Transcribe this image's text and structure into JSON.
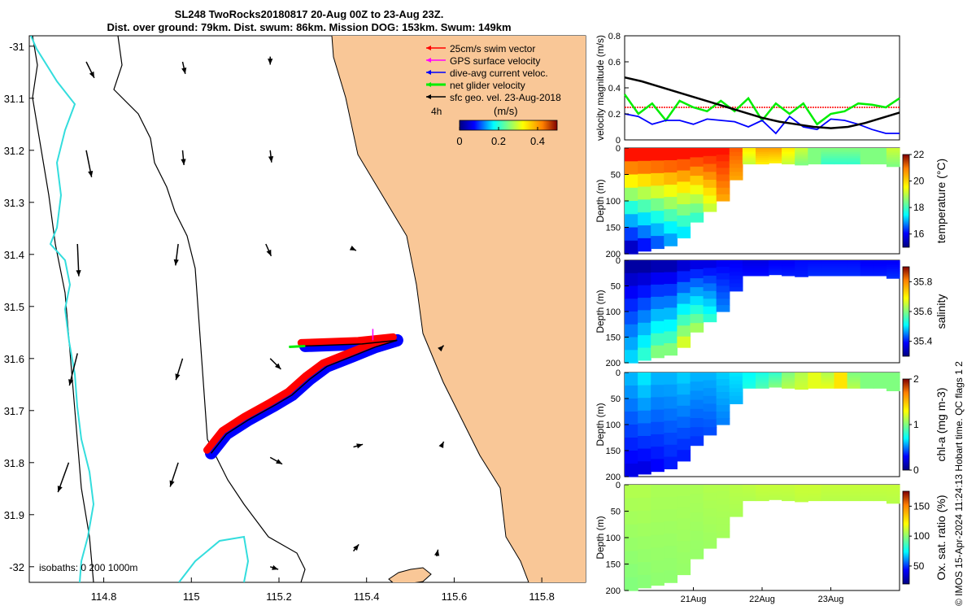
{
  "title": {
    "line1": "SL248 TwoRocks20180817 20-Aug 00Z to 23-Aug 23Z.",
    "line2": "Dist. over ground: 79km. Dist. swum: 86km. Mission DOG: 153km. Swum: 149km"
  },
  "credit": "© IMOS 15-Apr-2024 11:24:13 Hobart time. QC flags 1  2",
  "colors": {
    "land": "#f9c797",
    "coast": "#000000",
    "isobath_0": "#000000",
    "isobath_200": "#000000",
    "isobath_1000": "#33dddd",
    "swim": "#ff0000",
    "gps": "#ff00ff",
    "dive": "#0000ff",
    "net": "#00ee00",
    "geo": "#000000"
  },
  "chart_data": [
    {
      "id": "map",
      "type": "scatter",
      "x_ticks": [
        "114.8",
        "115",
        "115.2",
        "115.4",
        "115.6",
        "115.8"
      ],
      "y_ticks": [
        "-31",
        "31.1",
        "31.2",
        "31.3",
        "31.4",
        "31.5",
        "31.6",
        "31.7",
        "31.8",
        "31.9",
        "-32"
      ],
      "xlim": [
        114.63,
        115.9
      ],
      "ylim": [
        -32.03,
        -30.98
      ],
      "legend_location": "top-right",
      "legend": [
        {
          "label": "25cm/s swim vector",
          "color": "#ff0000"
        },
        {
          "label": "GPS surface velocity",
          "color": "#ff00ff"
        },
        {
          "label": "dive-avg current veloc.",
          "color": "#0000ff"
        },
        {
          "label": "net glider velocity",
          "color": "#00ee00"
        },
        {
          "label": "sfc geo. vel. 23-Aug-2018",
          "color": "#000000"
        }
      ],
      "time_step_label": "4h",
      "colorbar": {
        "label": "(m/s)",
        "ticks": [
          "0",
          "0.2",
          "0.4"
        ],
        "range": [
          0,
          0.5
        ]
      },
      "isobaths_label": "isobaths: 0   200  1000m",
      "track": [
        {
          "lon": 115.045,
          "lat": -31.782
        },
        {
          "lon": 115.08,
          "lat": -31.745
        },
        {
          "lon": 115.13,
          "lat": -31.718
        },
        {
          "lon": 115.19,
          "lat": -31.69
        },
        {
          "lon": 115.23,
          "lat": -31.67
        },
        {
          "lon": 115.27,
          "lat": -31.64
        },
        {
          "lon": 115.31,
          "lat": -31.615
        },
        {
          "lon": 115.37,
          "lat": -31.595
        },
        {
          "lon": 115.42,
          "lat": -31.578
        },
        {
          "lon": 115.47,
          "lat": -31.565
        },
        {
          "lon": 115.39,
          "lat": -31.572
        },
        {
          "lon": 115.32,
          "lat": -31.574
        },
        {
          "lon": 115.26,
          "lat": -31.576
        }
      ],
      "geo_vectors": [
        {
          "lon": 114.76,
          "lat": -31.03,
          "u": 0.03,
          "v": -0.06
        },
        {
          "lon": 114.98,
          "lat": -31.03,
          "u": 0.01,
          "v": -0.045
        },
        {
          "lon": 115.18,
          "lat": -31.02,
          "u": 0.0,
          "v": -0.03
        },
        {
          "lon": 114.76,
          "lat": -31.2,
          "u": 0.02,
          "v": -0.1
        },
        {
          "lon": 114.98,
          "lat": -31.2,
          "u": 0.005,
          "v": -0.055
        },
        {
          "lon": 115.18,
          "lat": -31.2,
          "u": 0.005,
          "v": -0.045
        },
        {
          "lon": 114.74,
          "lat": -31.38,
          "u": 0.005,
          "v": -0.12
        },
        {
          "lon": 114.97,
          "lat": -31.38,
          "u": -0.01,
          "v": -0.08
        },
        {
          "lon": 115.17,
          "lat": -31.38,
          "u": 0.02,
          "v": -0.045
        },
        {
          "lon": 115.37,
          "lat": -31.39,
          "u": 0.01,
          "v": -0.005
        },
        {
          "lon": 114.74,
          "lat": -31.59,
          "u": -0.03,
          "v": -0.12
        },
        {
          "lon": 114.98,
          "lat": -31.6,
          "u": -0.025,
          "v": -0.08
        },
        {
          "lon": 115.18,
          "lat": -31.6,
          "u": 0.04,
          "v": -0.04
        },
        {
          "lon": 115.57,
          "lat": -31.58,
          "u": 0.01,
          "v": 0.01
        },
        {
          "lon": 114.72,
          "lat": -31.8,
          "u": -0.04,
          "v": -0.11
        },
        {
          "lon": 114.97,
          "lat": -31.8,
          "u": -0.03,
          "v": -0.09
        },
        {
          "lon": 115.18,
          "lat": -31.79,
          "u": 0.045,
          "v": -0.025
        },
        {
          "lon": 115.37,
          "lat": -31.77,
          "u": 0.035,
          "v": 0.01
        },
        {
          "lon": 115.57,
          "lat": -31.77,
          "u": 0.01,
          "v": 0.02
        },
        {
          "lon": 115.18,
          "lat": -32.0,
          "u": 0.03,
          "v": -0.01
        },
        {
          "lon": 115.37,
          "lat": -31.97,
          "u": 0.02,
          "v": 0.025
        },
        {
          "lon": 115.56,
          "lat": -31.98,
          "u": 0.005,
          "v": 0.025
        }
      ]
    },
    {
      "id": "velocity",
      "type": "line",
      "ylabel": "velocity magnitude (m/s)",
      "y_ticks": [
        "0",
        "0.2",
        "0.4",
        "0.6",
        "0.8"
      ],
      "ylim": [
        0,
        0.8
      ],
      "xlim": [
        0,
        4
      ],
      "series": [
        {
          "color": "#ff0000",
          "x": [
            0,
            0.5,
            1,
            1.5,
            2,
            2.5,
            3,
            3.5,
            4
          ],
          "values": [
            0.25,
            0.25,
            0.25,
            0.25,
            0.25,
            0.25,
            0.25,
            0.25,
            0.25
          ]
        },
        {
          "color": "#00ee00",
          "x": [
            0,
            0.2,
            0.4,
            0.6,
            0.8,
            1,
            1.2,
            1.4,
            1.6,
            1.8,
            2,
            2.2,
            2.4,
            2.6,
            2.8,
            3,
            3.2,
            3.4,
            3.6,
            3.8,
            4
          ],
          "values": [
            0.35,
            0.2,
            0.28,
            0.15,
            0.3,
            0.25,
            0.22,
            0.3,
            0.22,
            0.32,
            0.15,
            0.28,
            0.2,
            0.28,
            0.12,
            0.2,
            0.22,
            0.28,
            0.27,
            0.25,
            0.32
          ]
        },
        {
          "color": "#0000ff",
          "x": [
            0,
            0.2,
            0.4,
            0.6,
            0.8,
            1,
            1.2,
            1.4,
            1.6,
            1.8,
            2,
            2.2,
            2.4,
            2.6,
            2.8,
            3,
            3.2,
            3.4,
            3.6,
            3.8,
            4
          ],
          "values": [
            0.2,
            0.18,
            0.12,
            0.15,
            0.15,
            0.12,
            0.16,
            0.15,
            0.14,
            0.1,
            0.15,
            0.05,
            0.18,
            0.1,
            0.08,
            0.16,
            0.15,
            0.12,
            0.08,
            0.05,
            0.05
          ]
        },
        {
          "color": "#000000",
          "x": [
            0,
            0.25,
            0.5,
            0.75,
            1,
            1.25,
            1.5,
            1.75,
            2,
            2.25,
            2.5,
            2.75,
            3,
            3.25,
            3.5,
            3.75,
            4
          ],
          "values": [
            0.48,
            0.45,
            0.41,
            0.37,
            0.33,
            0.29,
            0.25,
            0.21,
            0.17,
            0.14,
            0.12,
            0.1,
            0.09,
            0.1,
            0.13,
            0.17,
            0.21
          ]
        }
      ]
    },
    {
      "id": "temperature",
      "type": "heatmap",
      "ylabel": "Depth (m)",
      "y_ticks": [
        "0",
        "50",
        "100",
        "150",
        "200"
      ],
      "ylim": [
        200,
        0
      ],
      "colorbar": {
        "label": "temperature (°C)",
        "ticks": [
          "16",
          "18",
          "20",
          "22"
        ],
        "range": [
          15,
          22
        ]
      },
      "max_depth": [
        200,
        195,
        190,
        185,
        170,
        140,
        120,
        100,
        60,
        30,
        30,
        28,
        30,
        32,
        30,
        30,
        30,
        30,
        30,
        30,
        35
      ],
      "surface_value": [
        21,
        21,
        21,
        21,
        21,
        21,
        21,
        21,
        20.5,
        19.5,
        20,
        20,
        19.5,
        19,
        18.5,
        18.5,
        18.5,
        18.5,
        18.5,
        18.5,
        19
      ],
      "deep_value": [
        15.5,
        16,
        16.5,
        17,
        17.5,
        18,
        19,
        20,
        20,
        19,
        19.5,
        19.5,
        19,
        18.5,
        18.5,
        18,
        18,
        18,
        18.5,
        18.5,
        18.5
      ]
    },
    {
      "id": "salinity",
      "type": "heatmap",
      "ylabel": "Depth (m)",
      "y_ticks": [
        "0",
        "50",
        "100",
        "150",
        "200"
      ],
      "ylim": [
        200,
        0
      ],
      "colorbar": {
        "label": "salinity",
        "ticks": [
          "35.4",
          "35.6",
          "35.8"
        ],
        "range": [
          35.3,
          35.9
        ]
      },
      "max_depth": [
        200,
        195,
        190,
        185,
        170,
        140,
        120,
        100,
        60,
        30,
        30,
        28,
        30,
        32,
        30,
        30,
        30,
        30,
        30,
        30,
        35
      ],
      "surface_value": [
        35.32,
        35.32,
        35.33,
        35.33,
        35.35,
        35.36,
        35.36,
        35.37,
        35.37,
        35.36,
        35.36,
        35.37,
        35.37,
        35.38,
        35.38,
        35.38,
        35.38,
        35.38,
        35.37,
        35.37,
        35.37
      ],
      "deep_value": [
        35.5,
        35.55,
        35.6,
        35.6,
        35.65,
        35.62,
        35.55,
        35.45,
        35.4,
        35.38,
        35.38,
        35.39,
        35.39,
        35.39,
        35.4,
        35.4,
        35.4,
        35.4,
        35.39,
        35.39,
        35.4
      ]
    },
    {
      "id": "chla",
      "type": "heatmap",
      "ylabel": "Depth (m)",
      "y_ticks": [
        "0",
        "50",
        "100",
        "150",
        "200"
      ],
      "ylim": [
        200,
        0
      ],
      "colorbar": {
        "label": "chl-a (mg m-3)",
        "ticks": [
          "0",
          "1",
          "2"
        ],
        "range": [
          0,
          2
        ]
      },
      "max_depth": [
        200,
        195,
        190,
        185,
        170,
        140,
        120,
        100,
        60,
        30,
        30,
        28,
        30,
        32,
        30,
        30,
        30,
        30,
        30,
        30,
        35
      ],
      "surface_value": [
        0.6,
        0.7,
        0.6,
        0.6,
        0.65,
        0.6,
        0.6,
        0.65,
        0.7,
        0.75,
        0.8,
        0.85,
        1.0,
        1.1,
        1.2,
        1.1,
        1.3,
        1.0,
        1.0,
        1.0,
        1.0
      ],
      "deep_value": [
        0.2,
        0.2,
        0.25,
        0.3,
        0.3,
        0.35,
        0.4,
        0.5,
        0.6,
        0.8,
        0.9,
        1.0,
        1.1,
        1.15,
        1.2,
        1.2,
        1.3,
        1.1,
        1.0,
        1.0,
        1.0
      ]
    },
    {
      "id": "oxygen",
      "type": "heatmap",
      "ylabel": "Depth (m)",
      "y_ticks": [
        "0",
        "50",
        "100",
        "150",
        "200"
      ],
      "ylim": [
        200,
        0
      ],
      "x_ticks": [
        "21Aug",
        "22Aug",
        "23Aug"
      ],
      "x_tick_positions": [
        1,
        2,
        3
      ],
      "xlim": [
        0,
        4
      ],
      "colorbar": {
        "label": "Ox. sat. ratio (%)",
        "ticks": [
          "50",
          "100",
          "150"
        ],
        "range": [
          20,
          175
        ]
      },
      "max_depth": [
        200,
        195,
        190,
        185,
        170,
        140,
        120,
        100,
        60,
        30,
        30,
        28,
        30,
        32,
        30,
        30,
        30,
        30,
        30,
        30,
        35
      ],
      "surface_value": [
        105,
        105,
        104,
        104,
        104,
        104,
        105,
        105,
        106,
        107,
        108,
        108,
        108,
        109,
        109,
        108,
        108,
        108,
        108,
        108,
        108
      ],
      "deep_value": [
        98,
        99,
        100,
        100,
        101,
        101,
        102,
        103,
        104,
        105,
        106,
        106,
        106,
        107,
        107,
        106,
        106,
        106,
        106,
        106,
        106
      ]
    }
  ]
}
